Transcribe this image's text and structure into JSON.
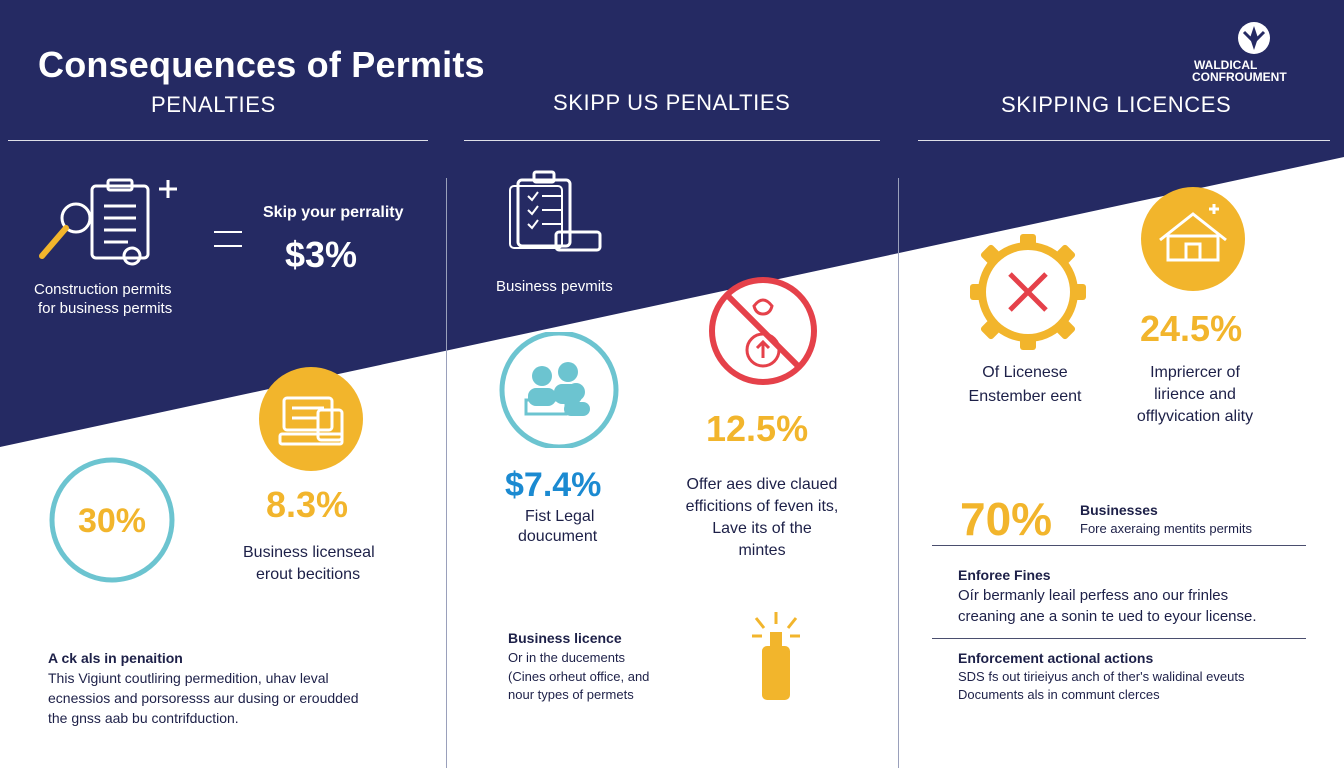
{
  "header": {
    "title": "Consequences of Permits",
    "logo_text_1": "WALDICAL",
    "logo_text_2": "CONFROUMENT"
  },
  "columns": [
    {
      "heading": "PENALTIES",
      "icon_label_1": "Construction permits",
      "icon_label_2": "for business permits",
      "skip_label": "Skip your perrality",
      "skip_value": "$3%",
      "circle_value": "30%",
      "stat_value": "8.3%",
      "stat_label_1": "Business licenseal",
      "stat_label_2": "erout becitions",
      "note_title": "A ck als in penaition",
      "note_lines": [
        "This Vigiunt coutliring permedition, uhav leval",
        "ecnessios and porsoresss aur dusing or eroudded",
        "the gnss aab bu contrifduction."
      ]
    },
    {
      "heading": "SKIPP US PENALTIES",
      "icon_label": "Business pevmits",
      "stat1_value": "$7.4%",
      "stat1_label_1": "Fist Legal",
      "stat1_label_2": "doucument",
      "stat2_value": "12.5%",
      "stat2_label_lines": [
        "Offer aes dive claued",
        "efficitions of feven its,",
        "Lave its of the",
        "mintes"
      ],
      "note_title": "Business licence",
      "note_lines": [
        "Or in the ducements",
        "(Cines orheut office, and",
        "nour types of permets"
      ]
    },
    {
      "heading": "SKIPPING LICENCES",
      "stat1_value": "24.5%",
      "label1_lines": [
        "Of Licenese",
        "Enstember eent"
      ],
      "label2_lines": [
        "Impriercer of",
        "lirience and",
        "offlyvication ality"
      ],
      "stat2_value": "70%",
      "stat2_title": "Businesses",
      "stat2_sub": "Fore axeraing mentits permits",
      "block1_title": "Enforee Fines",
      "block1_lines": [
        "Oír bermanly leail perfess ano our frinles",
        "creaning ane a sonin te ued to eyour license."
      ],
      "block2_title": "Enforcement actional actions",
      "block2_lines": [
        "SDS fs out tirieiyus anch of ther's walidinal eveuts",
        "Documents als in communt clerces"
      ]
    }
  ],
  "colors": {
    "navy": "#252a63",
    "yellow": "#f2b52c",
    "teal": "#6cc4d0",
    "red": "#e5414a",
    "blue": "#1b8ad1"
  },
  "icons": [
    "clipboard-magnifier-icon",
    "clipboard-stack-icon",
    "document-stack-icon",
    "people-group-icon",
    "no-money-bag-icon",
    "x-gear-icon",
    "house-icon",
    "spray-bottle-icon",
    "logo-emblem-icon"
  ]
}
